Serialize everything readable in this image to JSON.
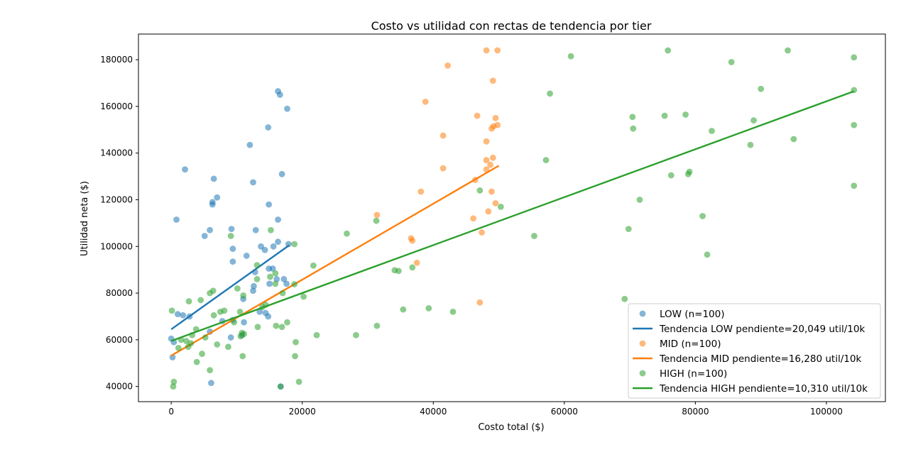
{
  "chart_data": {
    "type": "scatter",
    "title": "Costo vs utilidad con rectas de tendencia por tier",
    "xlabel": "Costo total ($)",
    "ylabel": "Utilidad neta ($)",
    "xlim": [
      -5000,
      109000
    ],
    "ylim": [
      33500,
      191000
    ],
    "x_ticks": [
      0,
      20000,
      40000,
      60000,
      80000,
      100000
    ],
    "x_tick_labels": [
      "0",
      "20000",
      "40000",
      "60000",
      "80000",
      "100000"
    ],
    "y_ticks": [
      40000,
      60000,
      80000,
      100000,
      120000,
      140000,
      160000,
      180000
    ],
    "y_tick_labels": [
      "40000",
      "60000",
      "80000",
      "100000",
      "120000",
      "140000",
      "160000",
      "180000"
    ],
    "grid": false,
    "legend_position": "bottom-right",
    "series": [
      {
        "name": "LOW (n=100)",
        "color": "#1f77b4",
        "marker": "circle",
        "points": [
          [
            16300,
            166500
          ],
          [
            16600,
            165000
          ],
          [
            17700,
            159000
          ],
          [
            14800,
            151000
          ],
          [
            12000,
            143500
          ],
          [
            2100,
            133000
          ],
          [
            16900,
            131000
          ],
          [
            6500,
            129000
          ],
          [
            12500,
            127500
          ],
          [
            7000,
            121000
          ],
          [
            6300,
            119000
          ],
          [
            6300,
            118000
          ],
          [
            14900,
            118000
          ],
          [
            800,
            111500
          ],
          [
            16300,
            111500
          ],
          [
            9200,
            107500
          ],
          [
            5900,
            107000
          ],
          [
            12900,
            107000
          ],
          [
            5100,
            104500
          ],
          [
            9400,
            99000
          ],
          [
            13700,
            100000
          ],
          [
            15600,
            100000
          ],
          [
            14300,
            98500
          ],
          [
            16300,
            102000
          ],
          [
            17900,
            101000
          ],
          [
            11500,
            96000
          ],
          [
            9400,
            93500
          ],
          [
            12800,
            89000
          ],
          [
            14900,
            90500
          ],
          [
            15500,
            90500
          ],
          [
            16100,
            86000
          ],
          [
            17200,
            86000
          ],
          [
            17600,
            84000
          ],
          [
            12600,
            83000
          ],
          [
            15000,
            84000
          ],
          [
            12500,
            81000
          ],
          [
            11000,
            77500
          ],
          [
            14400,
            71500
          ],
          [
            14800,
            70000
          ],
          [
            13500,
            72000
          ],
          [
            7800,
            68000
          ],
          [
            9400,
            68500
          ],
          [
            11100,
            67500
          ],
          [
            9100,
            61000
          ],
          [
            10800,
            62000
          ],
          [
            5900,
            63500
          ],
          [
            2800,
            70000
          ],
          [
            1800,
            70500
          ],
          [
            0,
            60500
          ],
          [
            400,
            59000
          ],
          [
            200,
            52500
          ],
          [
            6100,
            41500
          ],
          [
            16700,
            40000
          ],
          [
            1000,
            71000
          ]
        ]
      },
      {
        "name": "Tendencia LOW  pendiente=20,049 util/10k",
        "color": "#1f77b4",
        "line": [
          [
            0,
            64500
          ],
          [
            18000,
            100500
          ]
        ]
      },
      {
        "name": "MID (n=100)",
        "color": "#ff7f0e",
        "marker": "circle",
        "points": [
          [
            48100,
            184000
          ],
          [
            49800,
            184000
          ],
          [
            42200,
            177500
          ],
          [
            49100,
            171000
          ],
          [
            38800,
            162000
          ],
          [
            46700,
            156000
          ],
          [
            49500,
            155000
          ],
          [
            49800,
            152000
          ],
          [
            49200,
            151500
          ],
          [
            48900,
            150500
          ],
          [
            41500,
            147500
          ],
          [
            48100,
            145000
          ],
          [
            49100,
            138000
          ],
          [
            48100,
            137000
          ],
          [
            48700,
            135000
          ],
          [
            41500,
            133500
          ],
          [
            48100,
            133000
          ],
          [
            46400,
            128500
          ],
          [
            38100,
            123500
          ],
          [
            48900,
            123500
          ],
          [
            49500,
            118500
          ],
          [
            48400,
            115000
          ],
          [
            31400,
            113500
          ],
          [
            46100,
            112000
          ],
          [
            47400,
            106000
          ],
          [
            36600,
            103500
          ],
          [
            36800,
            102500
          ],
          [
            37500,
            93000
          ],
          [
            47100,
            76000
          ]
        ]
      },
      {
        "name": "Tendencia MID  pendiente=16,280 util/10k",
        "color": "#ff7f0e",
        "line": [
          [
            0,
            53200
          ],
          [
            50000,
            134600
          ]
        ]
      },
      {
        "name": "HIGH (n=100)",
        "color": "#2ca02c",
        "marker": "circle",
        "points": [
          [
            61000,
            181500
          ],
          [
            75800,
            184000
          ],
          [
            94100,
            184000
          ],
          [
            104200,
            181000
          ],
          [
            85500,
            179000
          ],
          [
            90000,
            167500
          ],
          [
            57800,
            165500
          ],
          [
            104200,
            167000
          ],
          [
            70400,
            155500
          ],
          [
            75300,
            156000
          ],
          [
            78500,
            156500
          ],
          [
            88900,
            154000
          ],
          [
            104200,
            152000
          ],
          [
            70500,
            150500
          ],
          [
            82500,
            149500
          ],
          [
            95000,
            146000
          ],
          [
            88400,
            143500
          ],
          [
            57200,
            137000
          ],
          [
            76300,
            130500
          ],
          [
            79100,
            132000
          ],
          [
            78900,
            131000
          ],
          [
            47100,
            124000
          ],
          [
            104200,
            126000
          ],
          [
            71500,
            120000
          ],
          [
            50300,
            117000
          ],
          [
            81100,
            113000
          ],
          [
            31300,
            111000
          ],
          [
            26800,
            105500
          ],
          [
            15200,
            107000
          ],
          [
            9100,
            104500
          ],
          [
            55400,
            104500
          ],
          [
            69800,
            107500
          ],
          [
            18800,
            101000
          ],
          [
            81800,
            96500
          ],
          [
            21700,
            91800
          ],
          [
            34100,
            89800
          ],
          [
            34700,
            89500
          ],
          [
            36800,
            91000
          ],
          [
            13100,
            92000
          ],
          [
            15100,
            87000
          ],
          [
            15900,
            88500
          ],
          [
            13100,
            86000
          ],
          [
            10100,
            82000
          ],
          [
            15900,
            84000
          ],
          [
            18800,
            83800
          ],
          [
            11000,
            79000
          ],
          [
            17000,
            80000
          ],
          [
            20200,
            78500
          ],
          [
            6400,
            81000
          ],
          [
            5900,
            80000
          ],
          [
            4500,
            77000
          ],
          [
            2700,
            76500
          ],
          [
            8100,
            72500
          ],
          [
            6500,
            70500
          ],
          [
            7500,
            72000
          ],
          [
            10500,
            72000
          ],
          [
            13900,
            74000
          ],
          [
            14400,
            75000
          ],
          [
            17700,
            67500
          ],
          [
            16000,
            66000
          ],
          [
            16900,
            65500
          ],
          [
            35400,
            73000
          ],
          [
            39300,
            73500
          ],
          [
            43000,
            72000
          ],
          [
            69200,
            77500
          ],
          [
            9600,
            67500
          ],
          [
            10800,
            63000
          ],
          [
            11100,
            62500
          ],
          [
            10600,
            61500
          ],
          [
            3200,
            62000
          ],
          [
            1500,
            60000
          ],
          [
            2300,
            59500
          ],
          [
            3000,
            58500
          ],
          [
            2600,
            57000
          ],
          [
            7000,
            58000
          ],
          [
            8700,
            57000
          ],
          [
            4700,
            54000
          ],
          [
            5200,
            61000
          ],
          [
            1100,
            56500
          ],
          [
            3900,
            50500
          ],
          [
            5900,
            47000
          ],
          [
            19000,
            59000
          ],
          [
            22200,
            62000
          ],
          [
            28200,
            62000
          ],
          [
            31400,
            66000
          ],
          [
            10900,
            53000
          ],
          [
            18900,
            53000
          ],
          [
            100,
            72500
          ],
          [
            3800,
            64500
          ],
          [
            400,
            42000
          ],
          [
            300,
            40000
          ],
          [
            16700,
            40000
          ],
          [
            19500,
            42000
          ],
          [
            13200,
            65500
          ]
        ]
      },
      {
        "name": "Tendencia HIGH  pendiente=10,310 util/10k",
        "color": "#2ca02c",
        "line": [
          [
            0,
            59500
          ],
          [
            104200,
            166500
          ]
        ]
      }
    ]
  }
}
